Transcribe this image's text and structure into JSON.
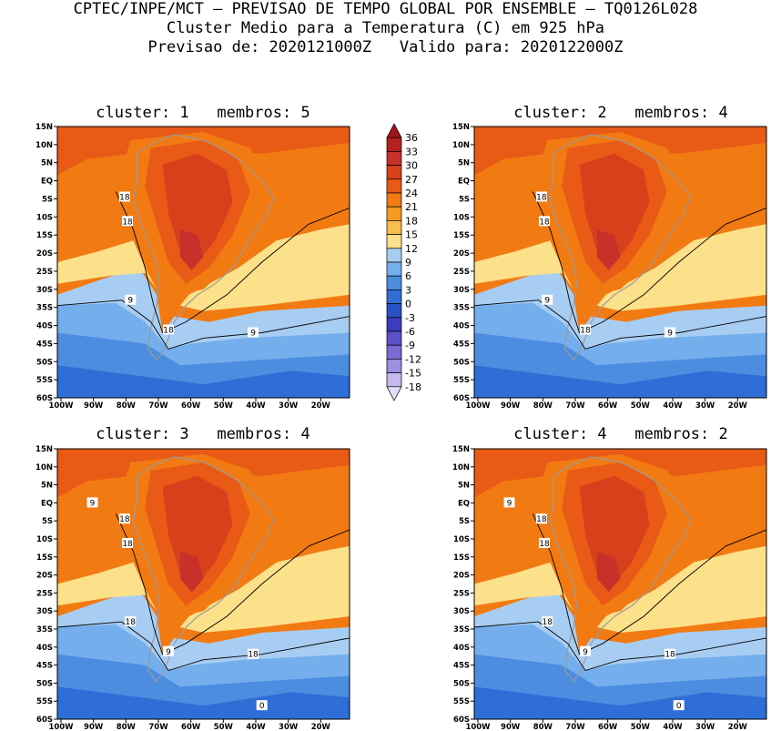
{
  "header": {
    "line1": "CPTEC/INPE/MCT – PREVISAO DE TEMPO GLOBAL POR ENSEMBLE – TQ0126L028",
    "line2": "Cluster Medio para a Temperatura (C) em 925 hPa",
    "line3": "Previsao de: 2020121000Z   Valido para: 2020122000Z"
  },
  "panels": [
    {
      "title": "cluster: 1   membros: 5",
      "contour_labels": [
        "18",
        "18",
        "9",
        "18",
        "9"
      ]
    },
    {
      "title": "cluster: 2   membros: 4",
      "contour_labels": [
        "18",
        "18",
        "9",
        "18",
        "9"
      ]
    },
    {
      "title": "cluster: 3   membros: 4",
      "contour_labels": [
        "18",
        "18",
        "18",
        "9",
        "18",
        "9",
        "0"
      ]
    },
    {
      "title": "cluster: 4   membros: 2",
      "contour_labels": [
        "18",
        "18",
        "18",
        "9",
        "18",
        "9",
        "0"
      ]
    }
  ],
  "lat_ticks": [
    "15N",
    "10N",
    "5N",
    "EQ",
    "5S",
    "10S",
    "15S",
    "20S",
    "25S",
    "30S",
    "35S",
    "40S",
    "45S",
    "50S",
    "55S",
    "60S"
  ],
  "lon_ticks": [
    "100W",
    "90W",
    "80W",
    "70W",
    "60W",
    "50W",
    "40W",
    "30W",
    "20W"
  ],
  "colorbar": {
    "labels": [
      "36",
      "33",
      "30",
      "27",
      "24",
      "21",
      "18",
      "15",
      "12",
      "9",
      "6",
      "3",
      "0",
      "-3",
      "-6",
      "-9",
      "-12",
      "-15",
      "-18"
    ],
    "colors": [
      "#a01414",
      "#b4201e",
      "#c8302c",
      "#d8401c",
      "#e85a16",
      "#f27a12",
      "#f69a22",
      "#f8be4c",
      "#fce08a",
      "#a8cdf2",
      "#74aeec",
      "#4c8de0",
      "#2e6ed6",
      "#2a52c8",
      "#3c3cc0",
      "#5a50c8",
      "#7a6ad4",
      "#9c8ee0",
      "#c4b8ec",
      "#e2dcf6"
    ]
  },
  "colors": {
    "land_outline": "#9a9a9a",
    "contour": "#000000"
  }
}
